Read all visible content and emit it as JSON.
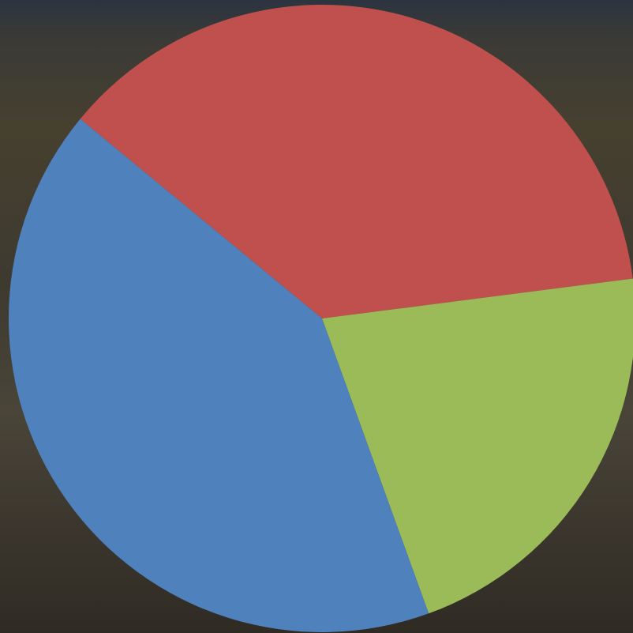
{
  "chart_data": {
    "type": "pie",
    "values": [
      37,
      21.5,
      41.5
    ],
    "colors": [
      "#c0504d",
      "#9bbb59",
      "#4f81bd"
    ]
  }
}
